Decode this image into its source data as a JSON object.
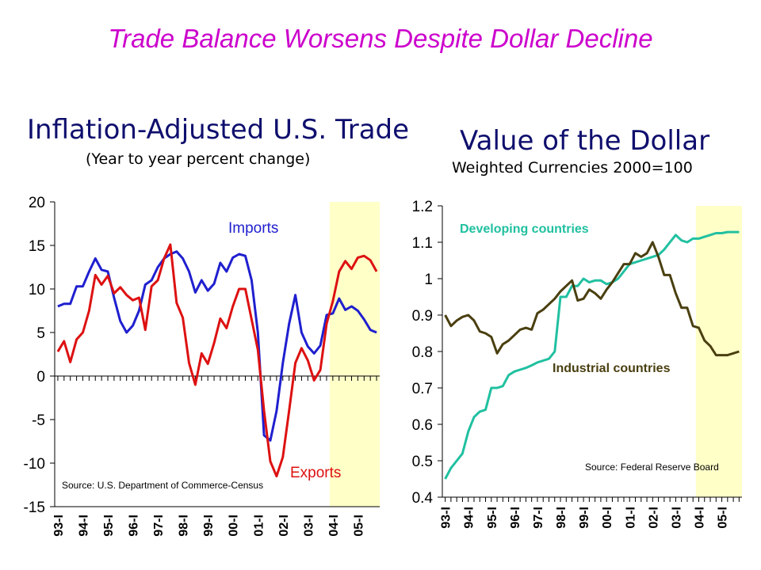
{
  "page": {
    "title": "Trade Balance Worsens Despite Dollar Decline"
  },
  "chart_data": [
    {
      "type": "line",
      "title": "Inflation-Adjusted U.S. Trade",
      "subtitle": "(Year to year percent change)",
      "ylim": [
        -15,
        20
      ],
      "yticks": [
        "20",
        "15",
        "10",
        "5",
        "0",
        "-5",
        "-10",
        "-15"
      ],
      "xticks": [
        "93-I",
        "94-I",
        "95-I",
        "96-I",
        "97-I",
        "98-I",
        "99-I",
        "00-I",
        "01-I",
        "02-I",
        "03-I",
        "04-I",
        "05-I"
      ],
      "x": [
        "93-I",
        "93-II",
        "93-III",
        "93-IV",
        "94-I",
        "94-II",
        "94-III",
        "94-IV",
        "95-I",
        "95-II",
        "95-III",
        "95-IV",
        "96-I",
        "96-II",
        "96-III",
        "96-IV",
        "97-I",
        "97-II",
        "97-III",
        "97-IV",
        "98-I",
        "98-II",
        "98-III",
        "98-IV",
        "99-I",
        "99-II",
        "99-III",
        "99-IV",
        "00-I",
        "00-II",
        "00-III",
        "00-IV",
        "01-I",
        "01-II",
        "01-III",
        "01-IV",
        "02-I",
        "02-II",
        "02-III",
        "02-IV",
        "03-I",
        "03-II",
        "03-III",
        "03-IV",
        "04-I",
        "04-II",
        "04-III",
        "04-IV",
        "05-I",
        "05-II",
        "05-III",
        "05-IV"
      ],
      "shaded_from": "04-I",
      "source": "Source: U.S. Department of Commerce-Census",
      "series": [
        {
          "name": "Imports",
          "color": "#1f1fcf",
          "values": [
            8.0,
            8.3,
            8.3,
            10.3,
            10.3,
            12.0,
            13.5,
            12.2,
            12.0,
            9.0,
            6.3,
            5.0,
            5.8,
            7.5,
            10.5,
            11.0,
            12.5,
            13.5,
            14.0,
            14.3,
            13.5,
            12.0,
            9.6,
            11.0,
            9.8,
            10.6,
            13.0,
            12.0,
            13.6,
            14.0,
            13.8,
            11.0,
            5.0,
            -6.8,
            -7.4,
            -4.0,
            1.5,
            6.0,
            9.3,
            5.0,
            3.4,
            2.6,
            3.5,
            7.0,
            7.2,
            8.9,
            7.6,
            8.0,
            7.5,
            6.5,
            5.3,
            5.0
          ]
        },
        {
          "name": "Exports",
          "color": "#dd1111",
          "values": [
            2.8,
            4.0,
            1.6,
            4.2,
            5.0,
            7.5,
            11.6,
            10.5,
            11.5,
            9.5,
            10.2,
            9.3,
            8.7,
            9.0,
            5.3,
            10.3,
            11.0,
            13.5,
            15.1,
            8.4,
            6.7,
            1.5,
            -1.0,
            2.6,
            1.4,
            3.8,
            6.6,
            5.5,
            8.0,
            10.0,
            10.0,
            6.5,
            3.0,
            -4.0,
            -9.8,
            -11.5,
            -9.3,
            -4.0,
            1.5,
            3.2,
            1.8,
            -0.5,
            0.7,
            6.0,
            8.6,
            12.0,
            13.2,
            12.3,
            13.6,
            13.8,
            13.3,
            12.0
          ]
        }
      ]
    },
    {
      "type": "line",
      "title": "Value of the Dollar",
      "subtitle": "Weighted Currencies 2000=100",
      "ylim": [
        0.4,
        1.2
      ],
      "yticks": [
        "1.2",
        "1.1",
        "1",
        "0.9",
        "0.8",
        "0.7",
        "0.6",
        "0.5",
        "0.4"
      ],
      "xticks": [
        "93-I",
        "94-I",
        "95-I",
        "96-I",
        "97-I",
        "98-I",
        "99-I",
        "00-I",
        "01-I",
        "02-I",
        "03-I",
        "04-I",
        "05-I"
      ],
      "x": [
        "93-I",
        "93-II",
        "93-III",
        "93-IV",
        "94-I",
        "94-II",
        "94-III",
        "94-IV",
        "95-I",
        "95-II",
        "95-III",
        "95-IV",
        "96-I",
        "96-II",
        "96-III",
        "96-IV",
        "97-I",
        "97-II",
        "97-III",
        "97-IV",
        "98-I",
        "98-II",
        "98-III",
        "98-IV",
        "99-I",
        "99-II",
        "99-III",
        "99-IV",
        "00-I",
        "00-II",
        "00-III",
        "00-IV",
        "01-I",
        "01-II",
        "01-III",
        "01-IV",
        "02-I",
        "02-II",
        "02-III",
        "02-IV",
        "03-I",
        "03-II",
        "03-III",
        "03-IV",
        "04-I",
        "04-II",
        "04-III",
        "04-IV",
        "05-I",
        "05-II",
        "05-III",
        "05-IV"
      ],
      "shaded_from": "04-I",
      "source": "Source: Federal Reserve Board",
      "series": [
        {
          "name": "Developing countries",
          "color": "#20c0a0",
          "values": [
            0.45,
            0.48,
            0.5,
            0.52,
            0.58,
            0.62,
            0.635,
            0.64,
            0.7,
            0.7,
            0.705,
            0.735,
            0.745,
            0.75,
            0.755,
            0.762,
            0.77,
            0.775,
            0.78,
            0.8,
            0.95,
            0.95,
            0.98,
            0.98,
            1.0,
            0.99,
            0.995,
            0.995,
            0.985,
            0.99,
            1.0,
            1.02,
            1.04,
            1.045,
            1.05,
            1.055,
            1.06,
            1.065,
            1.08,
            1.1,
            1.12,
            1.105,
            1.1,
            1.11,
            1.11,
            1.115,
            1.12,
            1.125,
            1.125,
            1.128,
            1.128,
            1.128
          ]
        },
        {
          "name": "Industrial countries",
          "color": "#4a3f10",
          "values": [
            0.9,
            0.87,
            0.885,
            0.895,
            0.9,
            0.885,
            0.855,
            0.85,
            0.84,
            0.795,
            0.82,
            0.83,
            0.845,
            0.86,
            0.865,
            0.86,
            0.905,
            0.915,
            0.93,
            0.945,
            0.965,
            0.98,
            0.995,
            0.94,
            0.945,
            0.97,
            0.96,
            0.945,
            0.97,
            0.99,
            1.015,
            1.04,
            1.04,
            1.07,
            1.06,
            1.07,
            1.1,
            1.06,
            1.01,
            1.01,
            0.96,
            0.92,
            0.92,
            0.87,
            0.865,
            0.83,
            0.815,
            0.79,
            0.79,
            0.79,
            0.795,
            0.8
          ]
        }
      ]
    }
  ]
}
